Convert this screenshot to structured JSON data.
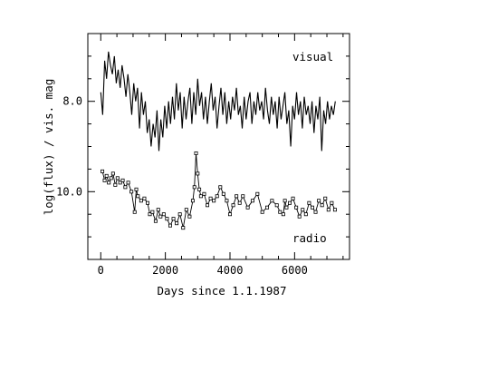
{
  "chart_data": {
    "type": "line",
    "xlabel": "Days since 1.1.1987",
    "ylabel": "log(flux) / vis. mag",
    "xlim": [
      -400,
      7700
    ],
    "ylim": [
      11.5,
      6.5
    ],
    "y_inverted": true,
    "x_ticks": [
      0,
      2000,
      4000,
      6000
    ],
    "x_ticklabels": [
      "0",
      "2000",
      "4000",
      "6000"
    ],
    "y_ticks": [
      8.0,
      10.0
    ],
    "y_ticklabels": [
      "8.0",
      "10.0"
    ],
    "grid": false,
    "annotations": [
      "visual",
      "radio"
    ],
    "series": [
      {
        "name": "visual",
        "style": "line",
        "x": [
          0,
          60,
          120,
          180,
          240,
          300,
          360,
          420,
          480,
          540,
          600,
          660,
          720,
          780,
          840,
          900,
          960,
          1020,
          1080,
          1140,
          1200,
          1260,
          1320,
          1380,
          1440,
          1500,
          1560,
          1620,
          1680,
          1740,
          1800,
          1860,
          1920,
          1980,
          2040,
          2100,
          2160,
          2220,
          2280,
          2340,
          2400,
          2460,
          2520,
          2580,
          2640,
          2700,
          2760,
          2820,
          2880,
          2940,
          3000,
          3060,
          3120,
          3180,
          3240,
          3300,
          3360,
          3420,
          3480,
          3540,
          3600,
          3660,
          3720,
          3780,
          3840,
          3900,
          3960,
          4020,
          4080,
          4140,
          4200,
          4260,
          4320,
          4380,
          4440,
          4500,
          4560,
          4620,
          4680,
          4740,
          4800,
          4860,
          4920,
          4980,
          5040,
          5100,
          5160,
          5220,
          5280,
          5340,
          5400,
          5460,
          5520,
          5580,
          5640,
          5700,
          5760,
          5820,
          5880,
          5940,
          6000,
          6060,
          6120,
          6180,
          6240,
          6300,
          6360,
          6420,
          6480,
          6540,
          6600,
          6660,
          6720,
          6780,
          6840,
          6900,
          6960,
          7020,
          7080,
          7140,
          7200,
          7260
        ],
        "values": [
          7.8,
          8.3,
          7.1,
          7.5,
          6.9,
          7.2,
          7.4,
          7.0,
          7.6,
          7.3,
          7.7,
          7.2,
          7.5,
          7.9,
          7.4,
          7.8,
          8.3,
          7.6,
          8.0,
          7.7,
          8.6,
          7.8,
          8.3,
          8.0,
          8.7,
          8.4,
          9.0,
          8.5,
          8.8,
          8.2,
          9.1,
          8.4,
          8.8,
          8.1,
          8.6,
          8.0,
          8.5,
          7.9,
          8.4,
          7.6,
          8.2,
          7.8,
          8.6,
          7.9,
          8.4,
          8.0,
          7.7,
          8.5,
          7.8,
          8.3,
          7.5,
          8.1,
          7.8,
          8.4,
          7.9,
          8.5,
          8.0,
          7.6,
          8.2,
          7.9,
          8.6,
          8.1,
          7.7,
          8.3,
          7.8,
          8.5,
          8.0,
          8.4,
          7.9,
          8.2,
          7.7,
          8.3,
          8.1,
          8.6,
          7.9,
          8.4,
          8.0,
          7.8,
          8.5,
          8.0,
          8.3,
          7.8,
          8.2,
          8.0,
          8.4,
          7.7,
          8.2,
          8.5,
          7.9,
          8.3,
          8.0,
          8.6,
          7.9,
          8.4,
          8.1,
          7.8,
          8.5,
          8.2,
          9.0,
          8.1,
          8.4,
          7.8,
          8.3,
          8.0,
          8.6,
          7.9,
          8.3,
          8.1,
          8.5,
          8.0,
          8.7,
          8.1,
          8.4,
          7.9,
          9.1,
          8.2,
          8.5,
          8.0,
          8.4,
          8.1,
          8.3,
          8.0
        ]
      },
      {
        "name": "radio",
        "style": "line+square-markers",
        "x": [
          50,
          120,
          180,
          250,
          320,
          380,
          450,
          520,
          600,
          680,
          760,
          850,
          950,
          1050,
          1100,
          1150,
          1250,
          1350,
          1450,
          1520,
          1600,
          1700,
          1780,
          1850,
          1950,
          2050,
          2150,
          2250,
          2350,
          2450,
          2550,
          2650,
          2750,
          2850,
          2900,
          2950,
          3000,
          3050,
          3100,
          3200,
          3300,
          3400,
          3500,
          3600,
          3700,
          3800,
          3900,
          4000,
          4100,
          4200,
          4300,
          4400,
          4550,
          4700,
          4850,
          5000,
          5150,
          5300,
          5450,
          5550,
          5650,
          5700,
          5750,
          5850,
          5950,
          6050,
          6150,
          6250,
          6350,
          6450,
          6550,
          6650,
          6750,
          6850,
          6950,
          7050,
          7150,
          7250
        ],
        "values": [
          9.55,
          9.75,
          9.65,
          9.8,
          9.7,
          9.6,
          9.85,
          9.7,
          9.8,
          9.75,
          9.9,
          9.8,
          10.0,
          10.45,
          9.95,
          10.1,
          10.2,
          10.15,
          10.25,
          10.5,
          10.45,
          10.65,
          10.4,
          10.55,
          10.5,
          10.6,
          10.75,
          10.6,
          10.7,
          10.5,
          10.8,
          10.4,
          10.55,
          10.2,
          9.9,
          9.15,
          9.6,
          9.95,
          10.1,
          10.05,
          10.3,
          10.15,
          10.2,
          10.1,
          9.9,
          10.05,
          10.2,
          10.5,
          10.3,
          10.1,
          10.25,
          10.1,
          10.35,
          10.2,
          10.05,
          10.45,
          10.35,
          10.2,
          10.3,
          10.45,
          10.5,
          10.2,
          10.35,
          10.25,
          10.15,
          10.35,
          10.55,
          10.4,
          10.5,
          10.25,
          10.35,
          10.45,
          10.2,
          10.3,
          10.15,
          10.4,
          10.25,
          10.4
        ]
      }
    ]
  }
}
